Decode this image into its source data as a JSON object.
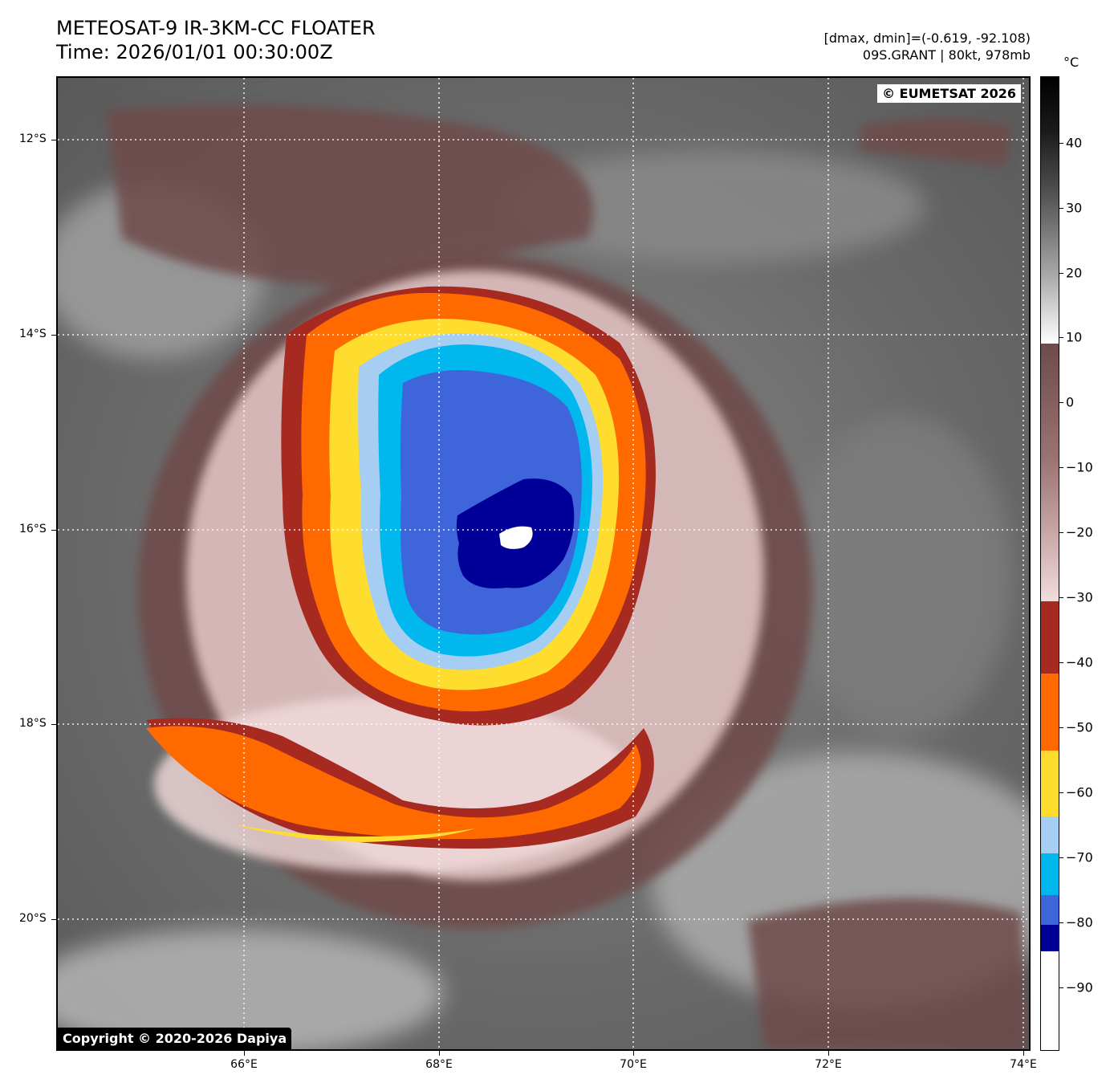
{
  "header": {
    "title_line1": "METEOSAT-9 IR-3KM-CC FLOATER",
    "title_line2": "Time: 2026/01/01 00:30:00Z",
    "meta_line1": "[dmax, dmin]=(-0.619, -92.108)",
    "meta_line2": "09S.GRANT | 80kt, 978mb"
  },
  "map": {
    "copyright_top": "© EUMETSAT 2026",
    "copyright_bottom": "Copyright © 2020-2026 Dapiya",
    "lat_labels": [
      "12°S",
      "14°S",
      "16°S",
      "18°S",
      "20°S"
    ],
    "lon_labels": [
      "66°E",
      "68°E",
      "70°E",
      "72°E",
      "74°E"
    ]
  },
  "colorbar": {
    "unit": "°C",
    "ticks": [
      "40",
      "30",
      "20",
      "10",
      "0",
      "−10",
      "−20",
      "−30",
      "−40",
      "−50",
      "−60",
      "−70",
      "−80",
      "−90"
    ],
    "colors": {
      "warm_black": "#000000",
      "warm_white": "#ffffff",
      "brown": "#6e4b4b",
      "pink": "#f2dcdc",
      "dark_red": "#a62a20",
      "orange": "#ff6a00",
      "yellow": "#ffdd2e",
      "light_blue": "#a6cdf2",
      "sky_blue": "#00b7ee",
      "royal_blue": "#3f65db",
      "navy": "#000099",
      "coldest": "#ffffff"
    }
  }
}
